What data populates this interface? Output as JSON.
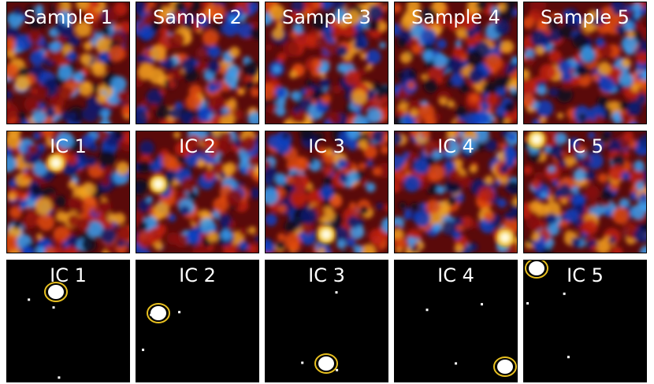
{
  "grid": {
    "rows": [
      [
        "Sample 1",
        "Sample 2",
        "Sample 3",
        "Sample 4",
        "Sample 5"
      ],
      [
        "IC 1",
        "IC 2",
        "IC 3",
        "IC 4",
        "IC 5"
      ],
      [
        "IC 1",
        "IC 2",
        "IC 3",
        "IC 4",
        "IC 5"
      ]
    ]
  }
}
